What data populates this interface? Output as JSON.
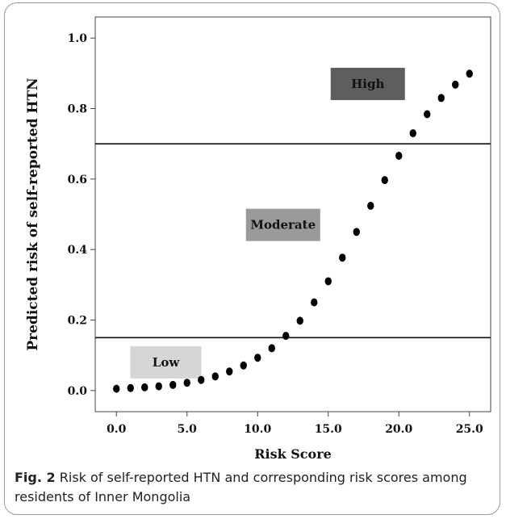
{
  "caption": {
    "label": "Fig. 2",
    "text": "Risk of self-reported HTN and corresponding risk scores among residents of Inner Mongolia"
  },
  "chart_data": {
    "type": "scatter",
    "xlabel": "Risk Score",
    "ylabel": "Predicted risk of self-reported HTN",
    "xlim": [
      -1.5,
      26.5
    ],
    "ylim": [
      -0.06,
      1.06
    ],
    "x_ticks": [
      "0.0",
      "5.0",
      "10.0",
      "15.0",
      "20.0",
      "25.0"
    ],
    "y_ticks": [
      "0.0",
      "0.2",
      "0.4",
      "0.6",
      "0.8",
      "1.0"
    ],
    "grid": false,
    "x": [
      0,
      1,
      2,
      3,
      4,
      5,
      6,
      7,
      8,
      9,
      10,
      11,
      12,
      13,
      14,
      15,
      16,
      17,
      18,
      19,
      20,
      21,
      22,
      23,
      24,
      25
    ],
    "y": [
      0.005,
      0.007,
      0.009,
      0.012,
      0.016,
      0.022,
      0.03,
      0.04,
      0.054,
      0.071,
      0.093,
      0.12,
      0.155,
      0.198,
      0.25,
      0.31,
      0.377,
      0.45,
      0.524,
      0.597,
      0.666,
      0.73,
      0.784,
      0.83,
      0.868,
      0.899
    ],
    "thresholds": [
      0.15,
      0.7
    ],
    "regions": [
      {
        "label": "Low",
        "color": "#d6d6d6",
        "x": 3.5,
        "y": 0.08
      },
      {
        "label": "Moderate",
        "color": "#9a9a9a",
        "x": 11.8,
        "y": 0.47
      },
      {
        "label": "High",
        "color": "#5e5e5e",
        "x": 17.8,
        "y": 0.87
      }
    ]
  }
}
